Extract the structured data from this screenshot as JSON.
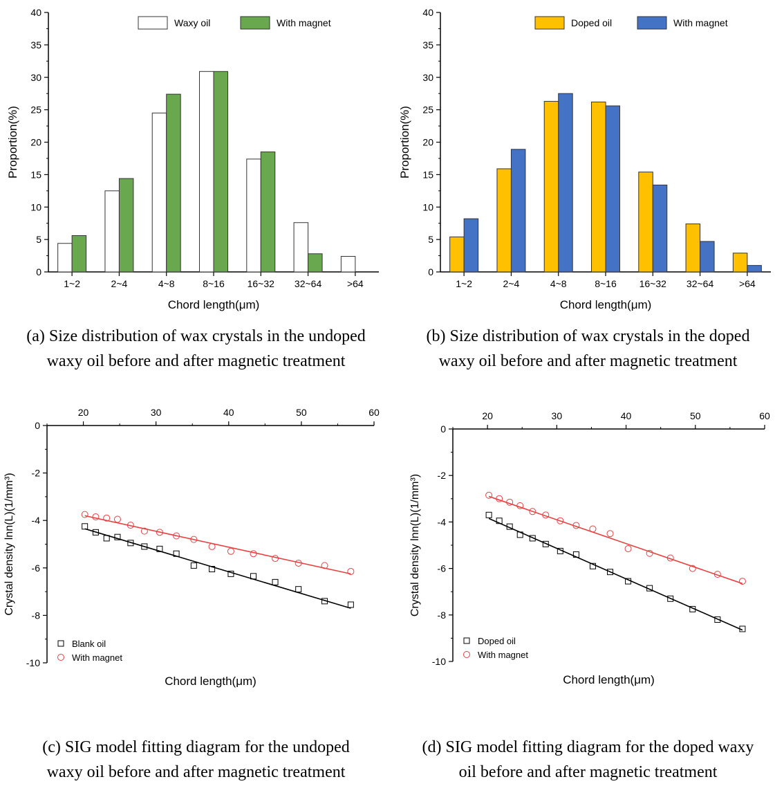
{
  "captions": [
    {
      "line1": "(a) Size distribution of wax crystals in the undoped",
      "line2": "waxy oil before and after magnetic treatment"
    },
    {
      "line1": "(b) Size distribution of wax crystals in the doped",
      "line2": "waxy oil before and after magnetic treatment"
    },
    {
      "line1": "(c) SIG model fitting diagram for the undoped",
      "line2": "waxy oil before and after magnetic treatment"
    },
    {
      "line1": "(d) SIG model fitting diagram for the doped waxy",
      "line2": "oil before and after magnetic treatment"
    }
  ],
  "chart_data": [
    {
      "type": "bar",
      "title": "",
      "xlabel": "Chord length(μm)",
      "ylabel": "Proportion(%)",
      "ylim": [
        0,
        40
      ],
      "yticks": [
        0,
        5,
        10,
        15,
        20,
        25,
        30,
        35,
        40
      ],
      "categories": [
        "1~2",
        "2~4",
        "4~8",
        "8~16",
        "16~32",
        "32~64",
        ">64"
      ],
      "legend_position": "top-right",
      "series": [
        {
          "name": "Waxy oil",
          "color": "#ffffff",
          "values": [
            4.4,
            12.5,
            24.5,
            30.9,
            17.4,
            7.6,
            2.4
          ]
        },
        {
          "name": "With magnet",
          "color": "#6aa84f",
          "values": [
            5.6,
            14.4,
            27.4,
            30.9,
            18.5,
            2.8,
            0
          ]
        }
      ]
    },
    {
      "type": "bar",
      "title": "",
      "xlabel": "Chord length(μm)",
      "ylabel": "Proportion(%)",
      "ylim": [
        0,
        40
      ],
      "yticks": [
        0,
        5,
        10,
        15,
        20,
        25,
        30,
        35,
        40
      ],
      "categories": [
        "1~2",
        "2~4",
        "4~8",
        "8~16",
        "16~32",
        "32~64",
        ">64"
      ],
      "legend_position": "top-right",
      "series": [
        {
          "name": "Doped oil",
          "color": "#ffc000",
          "values": [
            5.4,
            15.9,
            26.3,
            26.2,
            15.4,
            7.4,
            2.9
          ]
        },
        {
          "name": "With magnet",
          "color": "#4472c4",
          "values": [
            8.2,
            18.9,
            27.5,
            25.6,
            13.4,
            4.7,
            1.0
          ]
        }
      ]
    },
    {
      "type": "scatter",
      "title": "",
      "xlabel": "Chord length(μm)",
      "ylabel": "Crystal density lnn(L)(1/mm³)",
      "xlim": [
        15,
        60
      ],
      "xticks": [
        20,
        30,
        40,
        50,
        60
      ],
      "ylim": [
        -10,
        0
      ],
      "yticks": [
        0,
        -2,
        -4,
        -6,
        -8,
        -10
      ],
      "x_axis_position": "top",
      "legend_position": "bottom-left",
      "series": [
        {
          "name": "Blank oil",
          "marker": "square",
          "color": "#000000",
          "x": [
            20.2,
            21.7,
            23.2,
            24.7,
            26.5,
            28.4,
            30.5,
            32.8,
            35.2,
            37.7,
            40.3,
            43.4,
            46.4,
            49.6,
            53.2,
            56.8
          ],
          "y": [
            -4.25,
            -4.5,
            -4.75,
            -4.7,
            -4.95,
            -5.1,
            -5.2,
            -5.4,
            -5.9,
            -6.05,
            -6.25,
            -6.35,
            -6.6,
            -6.9,
            -7.4,
            -7.55
          ],
          "fit": [
            [
              20.2,
              -4.35
            ],
            [
              56.8,
              -7.7
            ]
          ]
        },
        {
          "name": "With magnet",
          "marker": "circle",
          "color": "#e84040",
          "x": [
            20.2,
            21.7,
            23.2,
            24.7,
            26.5,
            28.4,
            30.5,
            32.8,
            35.2,
            37.7,
            40.3,
            43.4,
            46.4,
            49.6,
            53.2,
            56.8
          ],
          "y": [
            -3.75,
            -3.85,
            -3.9,
            -3.95,
            -4.2,
            -4.45,
            -4.5,
            -4.65,
            -4.8,
            -5.1,
            -5.3,
            -5.4,
            -5.6,
            -5.8,
            -5.9,
            -6.15
          ],
          "fit": [
            [
              20.2,
              -3.8
            ],
            [
              56.8,
              -6.25
            ]
          ]
        }
      ]
    },
    {
      "type": "scatter",
      "title": "",
      "xlabel": "Chord length(μm)",
      "ylabel": "Crystal density lnn(L)(1/mm³)",
      "xlim": [
        15,
        60
      ],
      "xticks": [
        20,
        30,
        40,
        50,
        60
      ],
      "ylim": [
        -10,
        0
      ],
      "yticks": [
        0,
        -2,
        -4,
        -6,
        -8,
        -10
      ],
      "x_axis_position": "top",
      "legend_position": "bottom-left",
      "series": [
        {
          "name": "Doped oil",
          "marker": "square",
          "color": "#000000",
          "x": [
            20.2,
            21.7,
            23.2,
            24.7,
            26.5,
            28.4,
            30.5,
            32.8,
            35.2,
            37.7,
            40.3,
            43.4,
            46.4,
            49.6,
            53.2,
            56.8
          ],
          "y": [
            -3.7,
            -3.95,
            -4.2,
            -4.55,
            -4.7,
            -4.95,
            -5.25,
            -5.4,
            -5.9,
            -6.15,
            -6.55,
            -6.85,
            -7.3,
            -7.75,
            -8.2,
            -8.6
          ],
          "fit": [
            [
              20.2,
              -3.85
            ],
            [
              56.8,
              -8.65
            ]
          ]
        },
        {
          "name": "With magnet",
          "marker": "circle",
          "color": "#e84040",
          "x": [
            20.2,
            21.7,
            23.2,
            24.7,
            26.5,
            28.4,
            30.5,
            32.8,
            35.2,
            37.7,
            40.3,
            43.4,
            46.4,
            49.6,
            53.2,
            56.8
          ],
          "y": [
            -2.85,
            -3.0,
            -3.15,
            -3.3,
            -3.55,
            -3.7,
            -3.95,
            -4.15,
            -4.3,
            -4.5,
            -5.15,
            -5.35,
            -5.55,
            -6.0,
            -6.25,
            -6.55
          ],
          "fit": [
            [
              20.2,
              -2.9
            ],
            [
              56.8,
              -6.65
            ]
          ]
        }
      ]
    }
  ]
}
